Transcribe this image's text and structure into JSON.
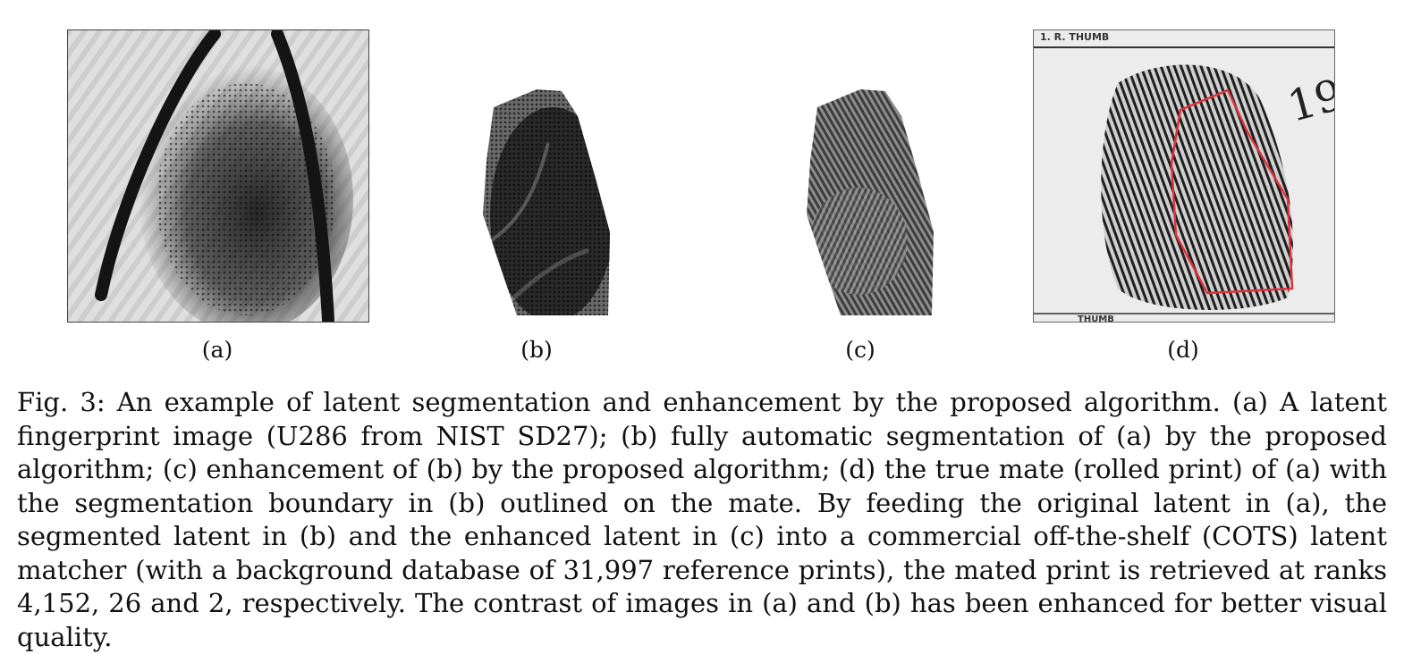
{
  "figure": {
    "panels": [
      {
        "label": "(a)",
        "image": "latent fingerprint with dark curved marks"
      },
      {
        "label": "(b)",
        "image": "segmented latent fingerprint"
      },
      {
        "label": "(c)",
        "image": "enhanced ridge pattern"
      },
      {
        "label": "(d)",
        "image": "rolled print with red segmentation boundary",
        "card_text_top": "1. R. THUMB",
        "card_text_bottom": "THUMB",
        "handwritten": "19"
      }
    ],
    "boundary_color": "#e0303a"
  },
  "caption": {
    "text": "Fig. 3: An example of latent segmentation and enhancement by the proposed algorithm. (a) A latent fingerprint image (U286 from NIST SD27); (b) fully automatic segmentation of (a) by the proposed algorithm; (c) enhancement of (b) by the proposed algorithm; (d) the true mate (rolled print) of (a) with the segmentation boundary in (b) outlined on the mate. By feeding the original latent in (a), the segmented latent in (b) and the enhanced latent in (c) into a commercial off-the-shelf (COTS) latent matcher (with a background database of 31,997 reference prints), the mated print is retrieved at ranks 4,152, 26 and 2, respectively. The contrast of images in (a) and (b) has been enhanced for better visual quality."
  }
}
